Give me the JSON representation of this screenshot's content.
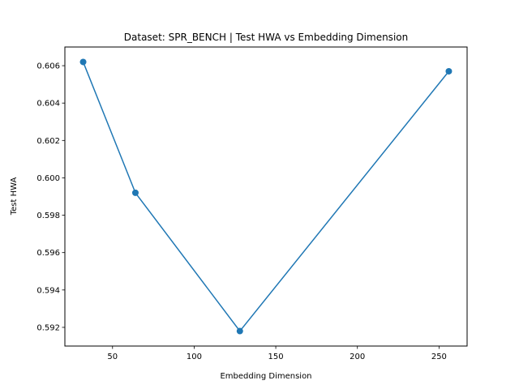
{
  "chart_data": {
    "type": "line",
    "title": "Dataset: SPR_BENCH | Test HWA vs Embedding Dimension",
    "xlabel": "Embedding Dimension",
    "ylabel": "Test HWA",
    "x": [
      32,
      64,
      128,
      256
    ],
    "series": [
      {
        "values": [
          0.6062,
          0.5992,
          0.5918,
          0.6057
        ],
        "color": "#1f77b4",
        "marker": "circle"
      }
    ],
    "xlim": [
      20.8,
      267.2
    ],
    "ylim": [
      0.591,
      0.607
    ],
    "xticks": [
      50,
      100,
      150,
      200,
      250
    ],
    "xtick_labels": [
      "50",
      "100",
      "150",
      "200",
      "250"
    ],
    "yticks": [
      0.592,
      0.594,
      0.596,
      0.598,
      0.6,
      0.602,
      0.604,
      0.606
    ],
    "ytick_labels": [
      "0.592",
      "0.594",
      "0.596",
      "0.598",
      "0.600",
      "0.602",
      "0.604",
      "0.606"
    ],
    "grid": false,
    "legend": "none"
  }
}
